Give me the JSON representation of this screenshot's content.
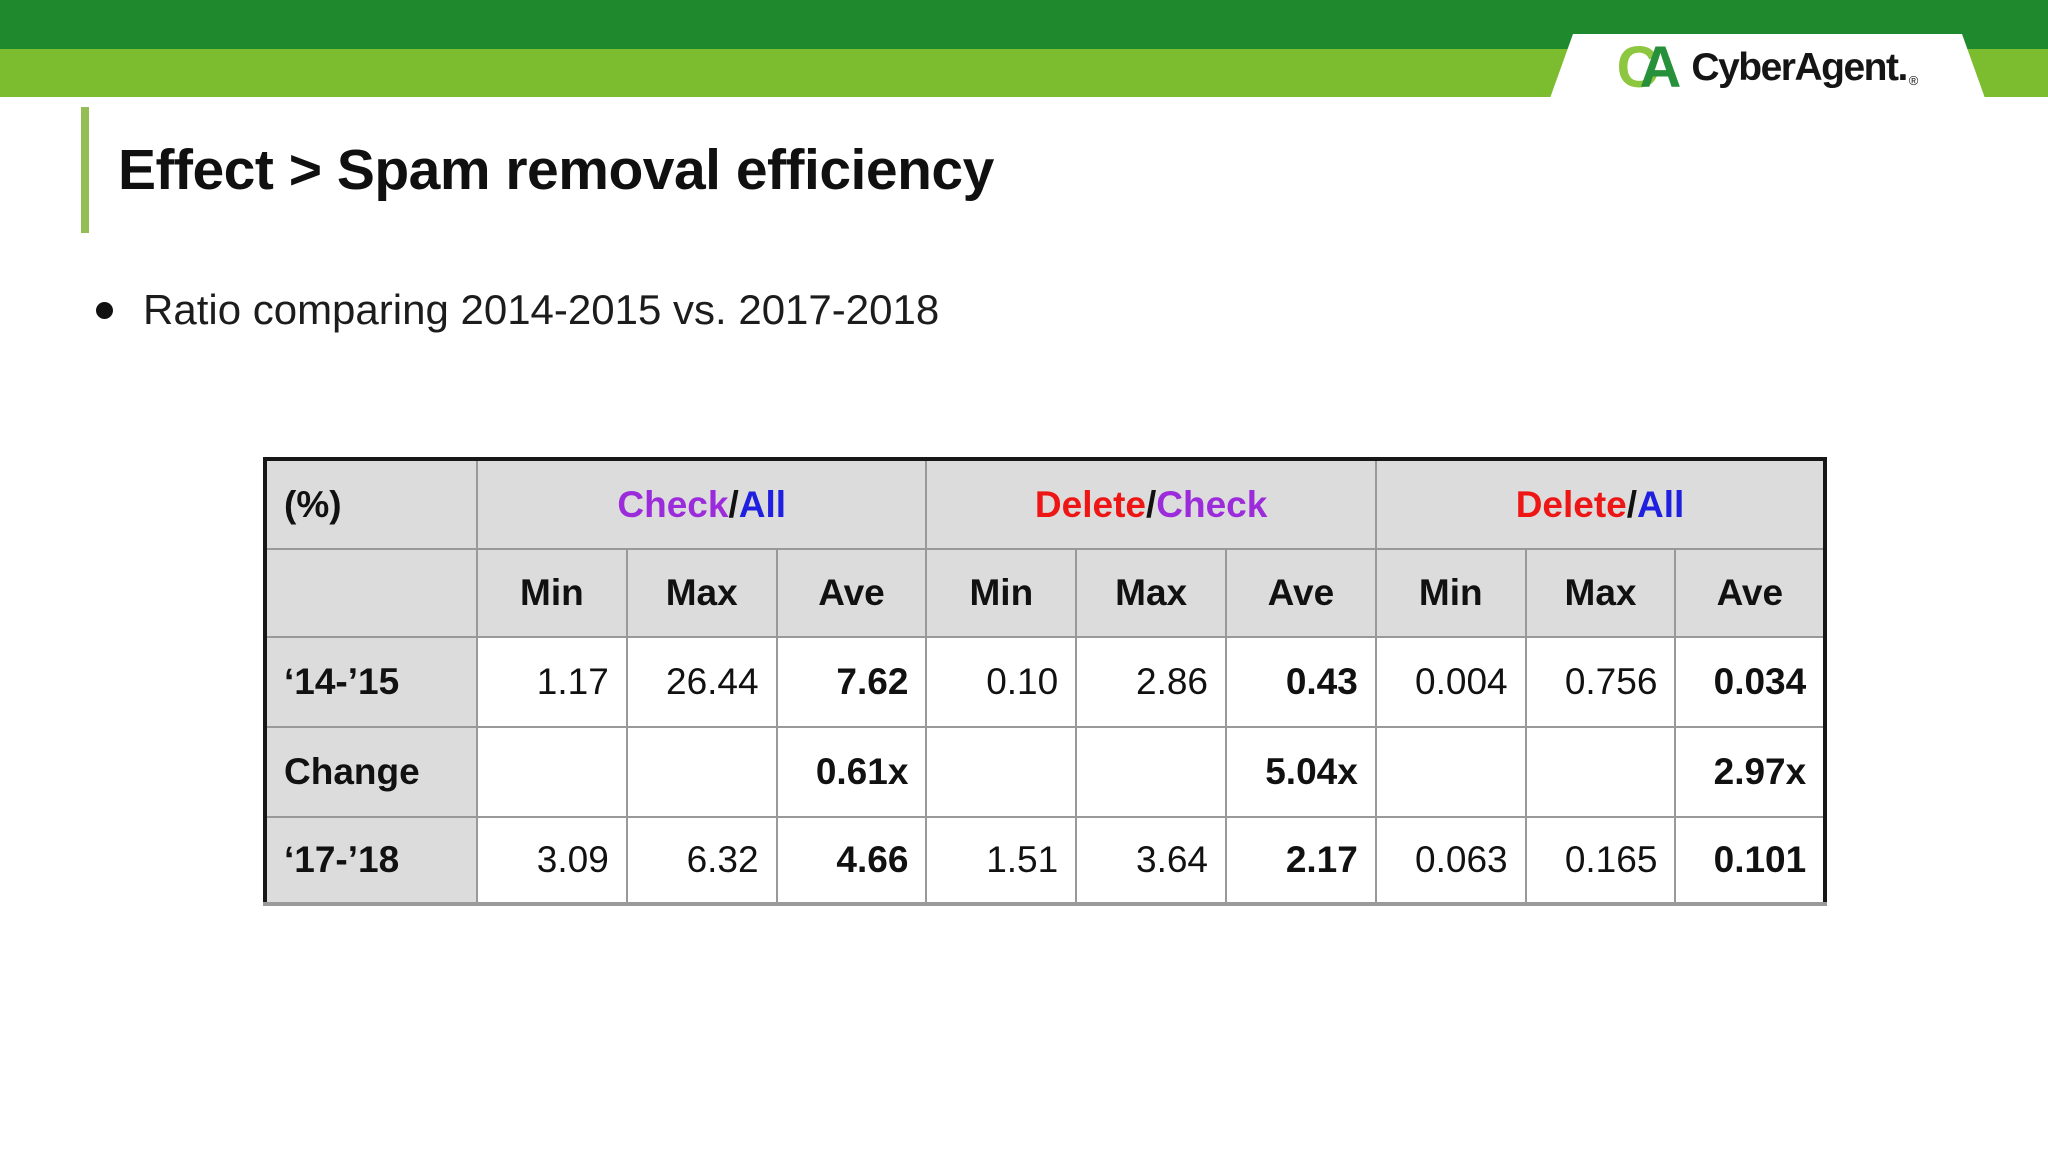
{
  "brand": {
    "mark_c": "C",
    "mark_a": "A",
    "name": "CyberAgent.",
    "registered": "®"
  },
  "title": {
    "text": "Effect > Spam removal efficiency"
  },
  "bullet": {
    "text": "Ratio comparing 2014-2015 vs. 2017-2018"
  },
  "table": {
    "corner_label": "(%)",
    "groups": [
      {
        "num": "Check",
        "slash": "/",
        "den": "All",
        "num_color": "#9b2bdb",
        "den_color": "#1f1fe0"
      },
      {
        "num": "Delete",
        "slash": "/",
        "den": "Check",
        "num_color": "#ee1515",
        "den_color": "#9b2bdb"
      },
      {
        "num": "Delete",
        "slash": "/",
        "den": "All",
        "num_color": "#ee1515",
        "den_color": "#1f1fe0"
      }
    ],
    "sub_headers": [
      "Min",
      "Max",
      "Ave",
      "Min",
      "Max",
      "Ave",
      "Min",
      "Max",
      "Ave"
    ],
    "rows": [
      {
        "label": "‘14-’15",
        "values": [
          "1.17",
          "26.44",
          "7.62",
          "0.10",
          "2.86",
          "0.43",
          "0.004",
          "0.756",
          "0.034"
        ]
      },
      {
        "label": "Change",
        "values": [
          "",
          "",
          "0.61x",
          "",
          "",
          "5.04x",
          "",
          "",
          "2.97x"
        ]
      },
      {
        "label": "‘17-’18",
        "values": [
          "3.09",
          "6.32",
          "4.66",
          "1.51",
          "3.64",
          "2.17",
          "0.063",
          "0.165",
          "0.101"
        ]
      }
    ]
  },
  "colors": {
    "header_dark_green": "#1e8a2d",
    "header_light_green": "#7cbd2f",
    "accent_green": "#94bd55",
    "bullet_black": "#111111",
    "purple": "#9b2bdb",
    "blue": "#1f1fe0",
    "red": "#ee1515",
    "cell_gray": "#dcdcdc"
  }
}
